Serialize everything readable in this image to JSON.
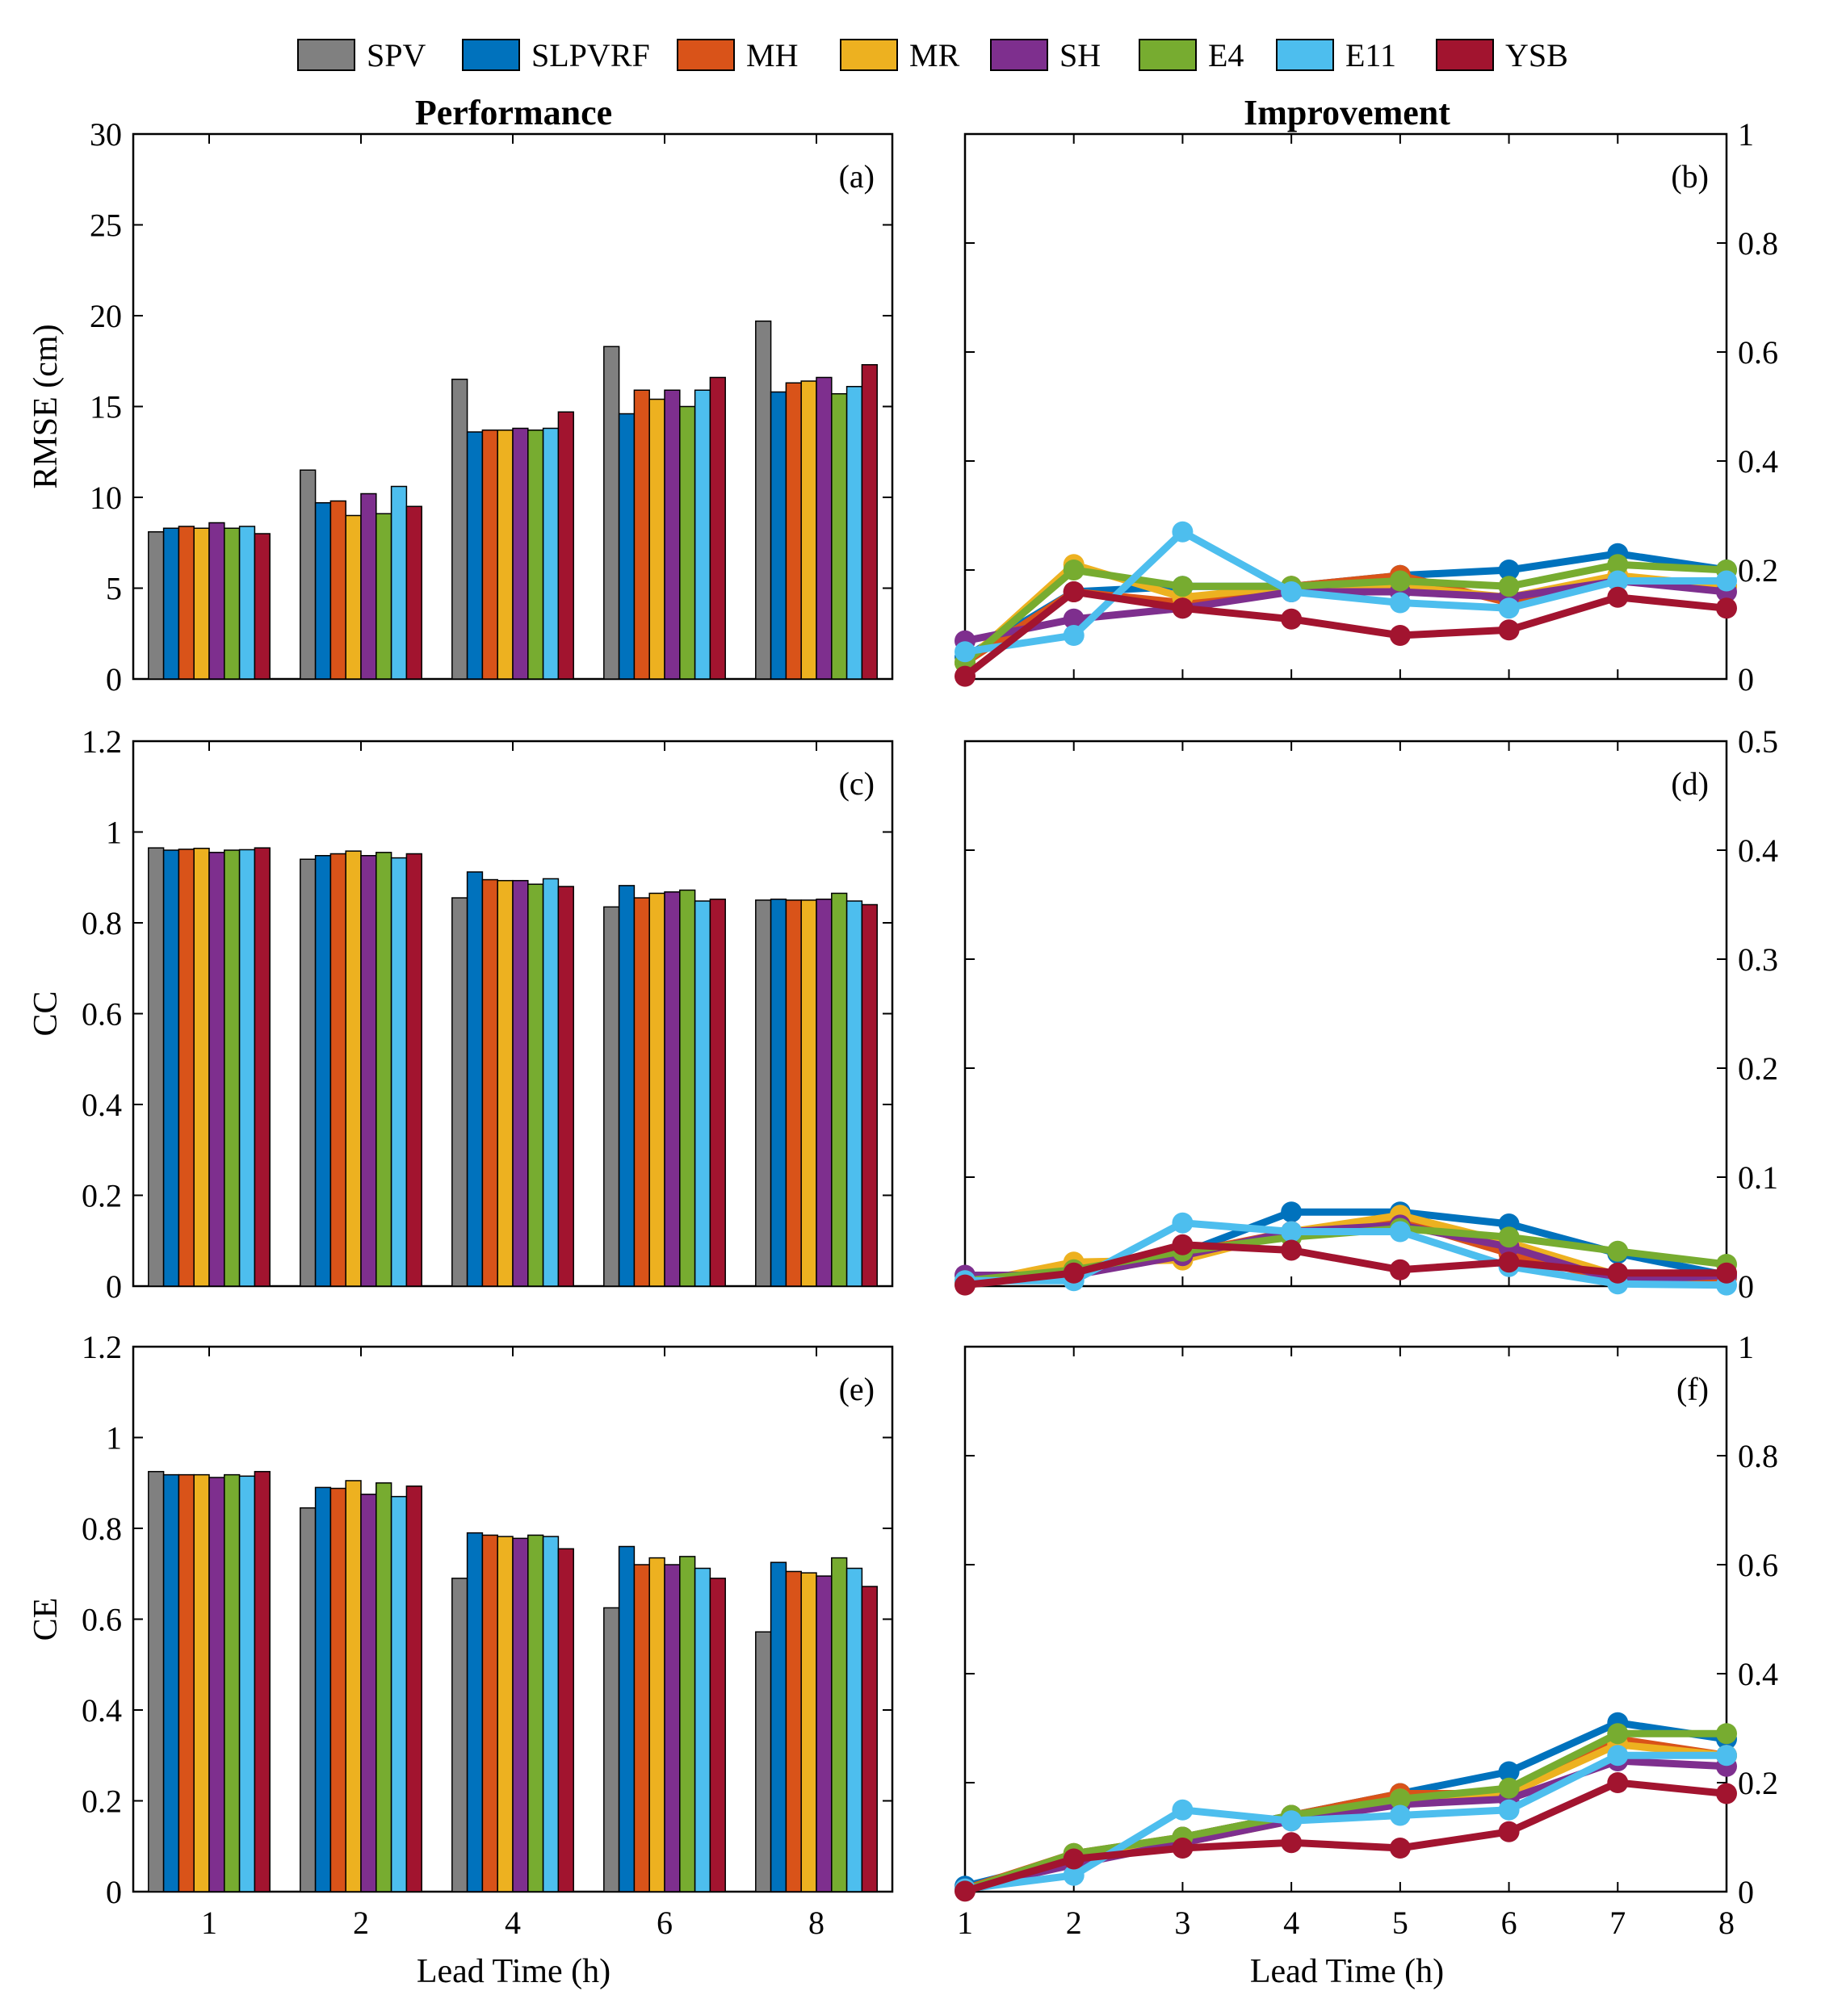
{
  "legend": [
    {
      "name": "SPV",
      "color": "#808080"
    },
    {
      "name": "SLPVRF",
      "color": "#0072BD"
    },
    {
      "name": "MH",
      "color": "#D95319"
    },
    {
      "name": "MR",
      "color": "#EDB120"
    },
    {
      "name": "SH",
      "color": "#7E2F8E"
    },
    {
      "name": "E4",
      "color": "#77AC30"
    },
    {
      "name": "E11",
      "color": "#4DBEEE"
    },
    {
      "name": "YSB",
      "color": "#A2142F"
    }
  ],
  "column_titles": {
    "left": "Performance",
    "right": "Improvement"
  },
  "xlabel": "Lead Time (h)",
  "chart_data": [
    {
      "panel": "(a)",
      "type": "bar",
      "ylabel": "RMSE (cm)",
      "ylim": [
        0,
        30
      ],
      "yticks": [
        "0",
        "5",
        "10",
        "15",
        "20",
        "25",
        "30"
      ],
      "categories": [
        "1",
        "2",
        "4",
        "6",
        "8"
      ],
      "series": [
        {
          "name": "SPV",
          "values": [
            8.1,
            11.5,
            16.5,
            18.3,
            19.7
          ]
        },
        {
          "name": "SLPVRF",
          "values": [
            8.3,
            9.7,
            13.6,
            14.6,
            15.8
          ]
        },
        {
          "name": "MH",
          "values": [
            8.4,
            9.8,
            13.7,
            15.9,
            16.3
          ]
        },
        {
          "name": "MR",
          "values": [
            8.3,
            9.0,
            13.7,
            15.4,
            16.4
          ]
        },
        {
          "name": "SH",
          "values": [
            8.6,
            10.2,
            13.8,
            15.9,
            16.6
          ]
        },
        {
          "name": "E4",
          "values": [
            8.3,
            9.1,
            13.7,
            15.0,
            15.7
          ]
        },
        {
          "name": "E11",
          "values": [
            8.4,
            10.6,
            13.8,
            15.9,
            16.1
          ]
        },
        {
          "name": "YSB",
          "values": [
            8.0,
            9.5,
            14.7,
            16.6,
            17.3
          ]
        }
      ]
    },
    {
      "panel": "(b)",
      "type": "line",
      "ylim": [
        0,
        1
      ],
      "yticks": [
        "0",
        "0.2",
        "0.4",
        "0.6",
        "0.8",
        "1"
      ],
      "x": [
        1,
        2,
        3,
        4,
        5,
        6,
        7,
        8
      ],
      "series": [
        {
          "name": "SLPVRF",
          "values": [
            0.04,
            0.16,
            0.17,
            0.17,
            0.19,
            0.2,
            0.23,
            0.2
          ]
        },
        {
          "name": "MH",
          "values": [
            0.03,
            0.16,
            0.14,
            0.17,
            0.19,
            0.14,
            0.18,
            0.17
          ]
        },
        {
          "name": "MR",
          "values": [
            0.03,
            0.21,
            0.15,
            0.17,
            0.17,
            0.15,
            0.19,
            0.17
          ]
        },
        {
          "name": "SH",
          "values": [
            0.07,
            0.11,
            0.13,
            0.16,
            0.16,
            0.15,
            0.18,
            0.16
          ]
        },
        {
          "name": "E4",
          "values": [
            0.03,
            0.2,
            0.17,
            0.17,
            0.18,
            0.17,
            0.21,
            0.2
          ]
        },
        {
          "name": "E11",
          "values": [
            0.05,
            0.08,
            0.27,
            0.16,
            0.14,
            0.13,
            0.18,
            0.18
          ]
        },
        {
          "name": "YSB",
          "values": [
            0.005,
            0.16,
            0.13,
            0.11,
            0.08,
            0.09,
            0.15,
            0.13
          ]
        }
      ]
    },
    {
      "panel": "(c)",
      "type": "bar",
      "ylabel": "CC",
      "ylim": [
        0,
        1.2
      ],
      "yticks": [
        "0",
        "0.2",
        "0.4",
        "0.6",
        "0.8",
        "1",
        "1.2"
      ],
      "categories": [
        "1",
        "2",
        "4",
        "6",
        "8"
      ],
      "series": [
        {
          "name": "SPV",
          "values": [
            0.965,
            0.94,
            0.855,
            0.835,
            0.85
          ]
        },
        {
          "name": "SLPVRF",
          "values": [
            0.96,
            0.948,
            0.912,
            0.882,
            0.852
          ]
        },
        {
          "name": "MH",
          "values": [
            0.962,
            0.952,
            0.895,
            0.855,
            0.85
          ]
        },
        {
          "name": "MR",
          "values": [
            0.964,
            0.958,
            0.893,
            0.865,
            0.85
          ]
        },
        {
          "name": "SH",
          "values": [
            0.955,
            0.948,
            0.893,
            0.868,
            0.852
          ]
        },
        {
          "name": "E4",
          "values": [
            0.96,
            0.955,
            0.885,
            0.872,
            0.865
          ]
        },
        {
          "name": "E11",
          "values": [
            0.961,
            0.943,
            0.897,
            0.848,
            0.848
          ]
        },
        {
          "name": "YSB",
          "values": [
            0.965,
            0.952,
            0.88,
            0.852,
            0.84
          ]
        }
      ]
    },
    {
      "panel": "(d)",
      "type": "line",
      "ylim": [
        0,
        0.5
      ],
      "yticks": [
        "0",
        "0.1",
        "0.2",
        "0.3",
        "0.4",
        "0.5"
      ],
      "x": [
        1,
        2,
        3,
        4,
        5,
        6,
        7,
        8
      ],
      "series": [
        {
          "name": "SLPVRF",
          "values": [
            0.002,
            0.012,
            0.03,
            0.068,
            0.068,
            0.057,
            0.03,
            0.01
          ]
        },
        {
          "name": "MH",
          "values": [
            0.003,
            0.016,
            0.03,
            0.05,
            0.06,
            0.03,
            0.005,
            0.008
          ]
        },
        {
          "name": "MR",
          "values": [
            0.002,
            0.022,
            0.024,
            0.05,
            0.065,
            0.04,
            0.01,
            0.012
          ]
        },
        {
          "name": "SH",
          "values": [
            0.01,
            0.01,
            0.028,
            0.05,
            0.056,
            0.036,
            0.005,
            0.01
          ]
        },
        {
          "name": "E4",
          "values": [
            0.005,
            0.015,
            0.032,
            0.045,
            0.053,
            0.045,
            0.032,
            0.02
          ]
        },
        {
          "name": "E11",
          "values": [
            0.005,
            0.005,
            0.058,
            0.05,
            0.05,
            0.018,
            0.002,
            0.001
          ]
        },
        {
          "name": "YSB",
          "values": [
            0.001,
            0.012,
            0.038,
            0.033,
            0.015,
            0.022,
            0.012,
            0.012
          ]
        }
      ]
    },
    {
      "panel": "(e)",
      "type": "bar",
      "ylabel": "CE",
      "ylim": [
        0,
        1.2
      ],
      "yticks": [
        "0",
        "0.2",
        "0.4",
        "0.6",
        "0.8",
        "1",
        "1.2"
      ],
      "categories": [
        "1",
        "2",
        "4",
        "6",
        "8"
      ],
      "series": [
        {
          "name": "SPV",
          "values": [
            0.925,
            0.845,
            0.69,
            0.625,
            0.572
          ]
        },
        {
          "name": "SLPVRF",
          "values": [
            0.918,
            0.89,
            0.79,
            0.76,
            0.725
          ]
        },
        {
          "name": "MH",
          "values": [
            0.918,
            0.888,
            0.785,
            0.72,
            0.705
          ]
        },
        {
          "name": "MR",
          "values": [
            0.918,
            0.905,
            0.782,
            0.735,
            0.702
          ]
        },
        {
          "name": "SH",
          "values": [
            0.912,
            0.875,
            0.778,
            0.72,
            0.695
          ]
        },
        {
          "name": "E4",
          "values": [
            0.918,
            0.9,
            0.785,
            0.738,
            0.735
          ]
        },
        {
          "name": "E11",
          "values": [
            0.915,
            0.87,
            0.782,
            0.712,
            0.712
          ]
        },
        {
          "name": "YSB",
          "values": [
            0.925,
            0.893,
            0.755,
            0.69,
            0.672
          ]
        }
      ]
    },
    {
      "panel": "(f)",
      "type": "line",
      "ylim": [
        0,
        1
      ],
      "yticks": [
        "0",
        "0.2",
        "0.4",
        "0.6",
        "0.8",
        "1"
      ],
      "x": [
        1,
        2,
        3,
        4,
        5,
        6,
        7,
        8
      ],
      "series": [
        {
          "name": "SLPVRF",
          "values": [
            0.01,
            0.06,
            0.1,
            0.14,
            0.18,
            0.22,
            0.31,
            0.28
          ]
        },
        {
          "name": "MH",
          "values": [
            0.005,
            0.07,
            0.1,
            0.14,
            0.18,
            0.18,
            0.28,
            0.25
          ]
        },
        {
          "name": "MR",
          "values": [
            0.003,
            0.06,
            0.09,
            0.13,
            0.17,
            0.18,
            0.27,
            0.25
          ]
        },
        {
          "name": "SH",
          "values": [
            0.005,
            0.05,
            0.09,
            0.13,
            0.16,
            0.17,
            0.24,
            0.23
          ]
        },
        {
          "name": "E4",
          "values": [
            0.003,
            0.07,
            0.1,
            0.14,
            0.17,
            0.19,
            0.29,
            0.29
          ]
        },
        {
          "name": "E11",
          "values": [
            0.005,
            0.03,
            0.15,
            0.13,
            0.14,
            0.15,
            0.25,
            0.25
          ]
        },
        {
          "name": "YSB",
          "values": [
            0.001,
            0.06,
            0.08,
            0.09,
            0.08,
            0.11,
            0.2,
            0.18
          ]
        }
      ]
    }
  ]
}
